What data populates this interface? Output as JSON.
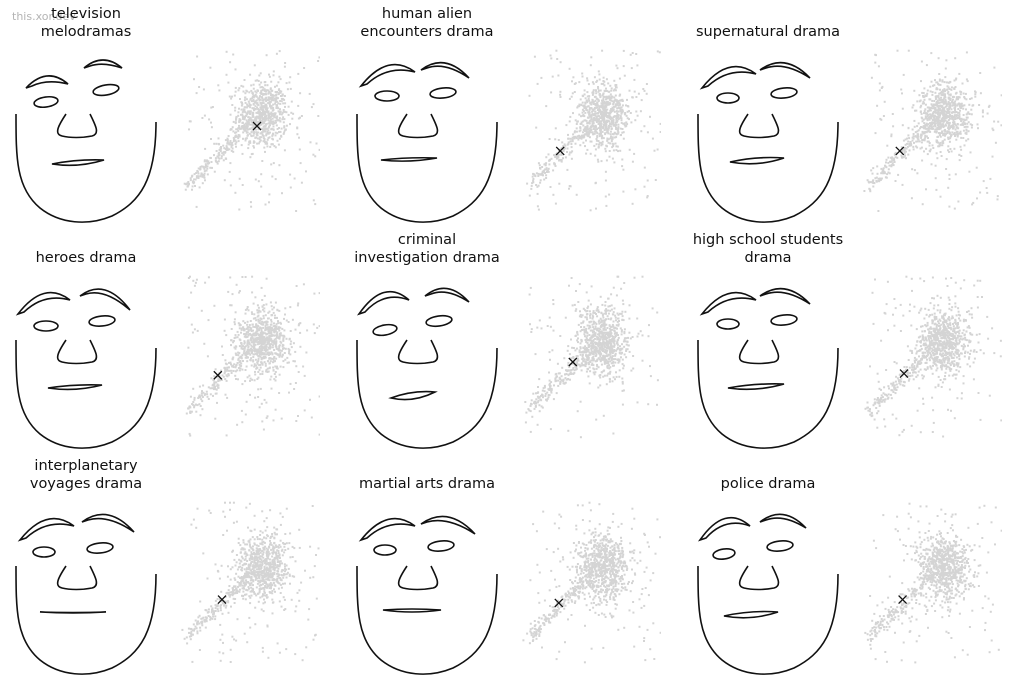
{
  "watermark": "this.xor.dev",
  "colors": {
    "stroke": "#111111",
    "point": "#d4d4d4",
    "marker": "#111111",
    "background": "#ffffff"
  },
  "chart_data": {
    "type": "scatter",
    "note_kind": "grid of chernoff faces with embedding scatter plots",
    "panels": [
      {
        "title_lines": [
          "television",
          "melodramas"
        ],
        "marker": [
          0.55,
          0.53
        ]
      },
      {
        "title_lines": [
          "human alien",
          "encounters drama"
        ],
        "marker": [
          0.28,
          0.38
        ]
      },
      {
        "title_lines": [
          "supernatural drama"
        ],
        "marker": [
          0.27,
          0.38
        ]
      },
      {
        "title_lines": [
          "heroes drama"
        ],
        "marker": [
          0.27,
          0.39
        ]
      },
      {
        "title_lines": [
          "criminal",
          "investigation drama"
        ],
        "marker": [
          0.37,
          0.47
        ]
      },
      {
        "title_lines": [
          "high school students",
          "drama"
        ],
        "marker": [
          0.3,
          0.4
        ]
      },
      {
        "title_lines": [
          "interplanetary",
          "voyages drama"
        ],
        "marker": [
          0.3,
          0.4
        ]
      },
      {
        "title_lines": [
          "martial arts drama"
        ],
        "marker": [
          0.27,
          0.38
        ]
      },
      {
        "title_lines": [
          "police drama"
        ],
        "marker": [
          0.29,
          0.4
        ]
      }
    ]
  }
}
